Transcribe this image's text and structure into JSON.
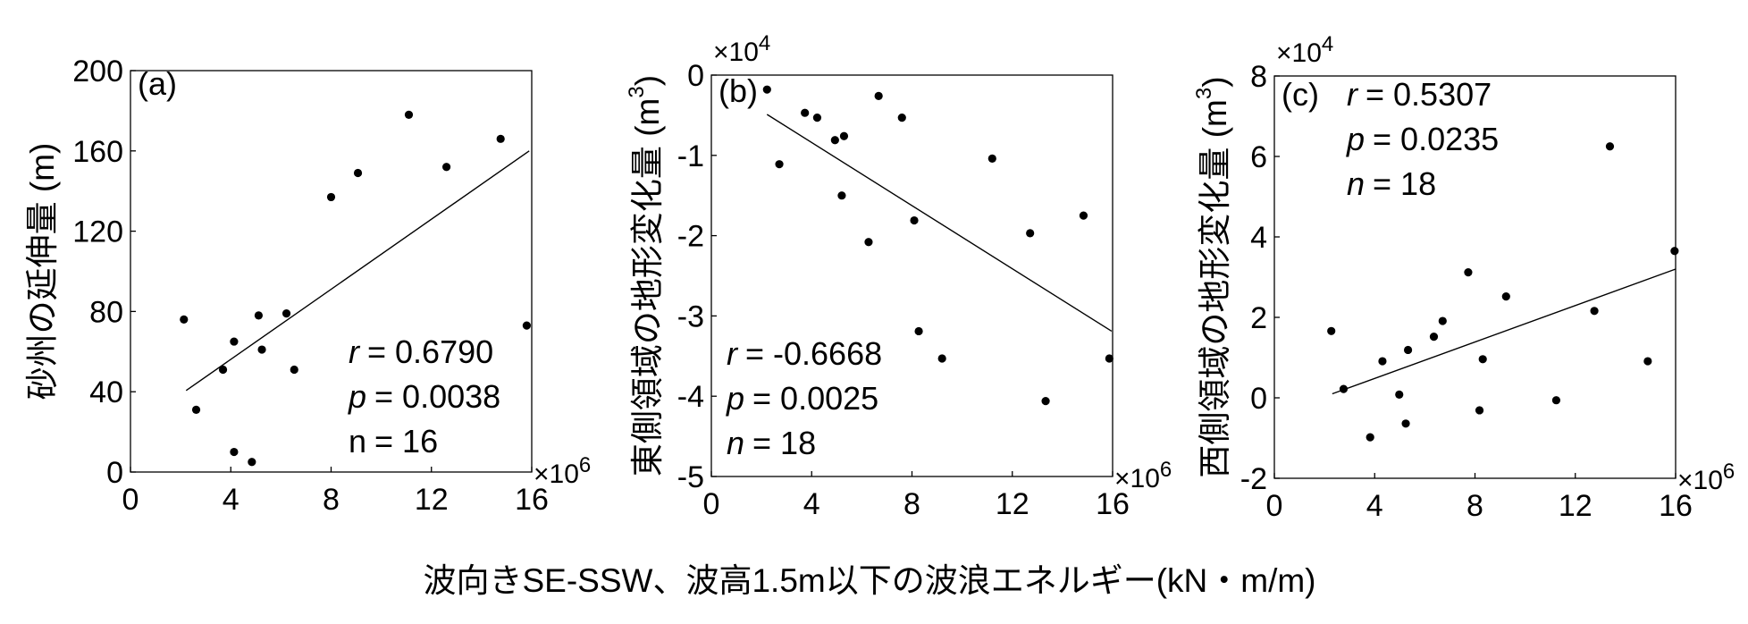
{
  "x_label": "波向きSE-SSW、波高1.5m以下の波浪エネルギー(kN・m/m)",
  "chart_data": [
    {
      "type": "scatter",
      "panel_label": "(a)",
      "y_label": [
        "砂州の延伸量 (m)"
      ],
      "x_multiplier": [
        "×10",
        "6"
      ],
      "annotations": [
        {
          "var": "r",
          "text": "= 0.6790",
          "italic": true
        },
        {
          "var": "p",
          "text": "= 0.0038",
          "italic": true
        },
        {
          "var": "n",
          "text": "= 16",
          "italic": false
        }
      ],
      "x": [
        2.13,
        2.62,
        3.69,
        4.13,
        4.13,
        4.84,
        5.11,
        5.24,
        6.22,
        6.53,
        8.0,
        9.07,
        11.1,
        12.6,
        14.76,
        15.8
      ],
      "series": [
        {
          "color": "#000000",
          "values": [
            76,
            31,
            51,
            65,
            10,
            5,
            78,
            61,
            79,
            51,
            137,
            149,
            178,
            152,
            166,
            73
          ]
        }
      ],
      "trend_line": {
        "x": [
          2.22,
          15.9
        ],
        "y": [
          40.6,
          160
        ]
      },
      "xlim": [
        0,
        16
      ],
      "xticks": [
        0,
        4,
        8,
        12,
        16
      ],
      "ylim": [
        0,
        200
      ],
      "yticks": [
        0,
        40,
        80,
        120,
        160,
        200
      ]
    },
    {
      "type": "scatter",
      "panel_label": "(b)",
      "y_label": [
        "東側領域の地形変化量 (m",
        "3",
        ")"
      ],
      "x_multiplier": [
        "×10",
        "6"
      ],
      "y_multiplier": [
        "×10",
        "4"
      ],
      "annotations": [
        {
          "var": "r",
          "text": "= -0.6668",
          "italic": true
        },
        {
          "var": "p",
          "text": "= 0.0025",
          "italic": true
        },
        {
          "var": "n",
          "text": "= 18",
          "italic": true
        }
      ],
      "x": [
        2.22,
        2.71,
        3.73,
        4.22,
        4.93,
        5.29,
        5.2,
        6.67,
        6.27,
        7.6,
        8.09,
        8.27,
        9.2,
        11.2,
        12.71,
        13.33,
        14.84,
        15.87
      ],
      "series": [
        {
          "color": "#000000",
          "values": [
            -0.18,
            -1.11,
            -0.47,
            -0.53,
            -0.81,
            -0.76,
            -1.5,
            -0.26,
            -2.08,
            -0.53,
            -1.81,
            -3.19,
            -3.53,
            -1.04,
            -1.97,
            -4.06,
            -1.75,
            -3.53
          ]
        }
      ],
      "trend_line": {
        "x": [
          2.22,
          15.96
        ],
        "y": [
          -0.49,
          -3.19
        ]
      },
      "xlim": [
        0,
        16
      ],
      "xticks": [
        0,
        4,
        8,
        12,
        16
      ],
      "ylim": [
        -5,
        0
      ],
      "yticks": [
        -5,
        -4,
        -3,
        -2,
        -1,
        0
      ]
    },
    {
      "type": "scatter",
      "panel_label": "(c)",
      "y_label": [
        "西側領域の地形変化量 (m",
        "3",
        ")"
      ],
      "x_multiplier": [
        "×10",
        "6"
      ],
      "y_multiplier": [
        "×10",
        "4"
      ],
      "annotations": [
        {
          "var": "r",
          "text": "= 0.5307",
          "italic": true
        },
        {
          "var": "p",
          "text": "= 0.0235",
          "italic": true
        },
        {
          "var": "n",
          "text": "= 18",
          "italic": true
        }
      ],
      "x": [
        2.27,
        2.76,
        3.82,
        4.31,
        4.98,
        5.24,
        5.33,
        6.36,
        6.71,
        7.73,
        8.18,
        8.31,
        9.24,
        11.24,
        12.76,
        13.38,
        14.89,
        15.96
      ],
      "series": [
        {
          "color": "#000000",
          "values": [
            1.66,
            0.22,
            -0.98,
            0.91,
            0.08,
            -0.64,
            1.19,
            1.52,
            1.91,
            3.12,
            -0.31,
            0.96,
            2.52,
            -0.06,
            2.16,
            6.25,
            0.91,
            3.65
          ]
        }
      ],
      "trend_line": {
        "x": [
          2.31,
          16
        ],
        "y": [
          0.1,
          3.2
        ]
      },
      "xlim": [
        0,
        16
      ],
      "xticks": [
        0,
        4,
        8,
        12,
        16
      ],
      "ylim": [
        -2,
        8
      ],
      "yticks": [
        -2,
        0,
        2,
        4,
        6,
        8
      ]
    }
  ]
}
